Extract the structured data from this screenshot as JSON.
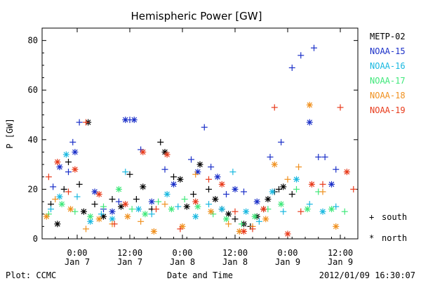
{
  "chart_data": {
    "type": "scatter",
    "title": "Hemispheric Power [GW]",
    "xlabel": "Date and Time",
    "ylabel": "P [GW]",
    "ylim": [
      0,
      85
    ],
    "xlim": [
      "2012-01-06T16:00",
      "2012-01-09T16:00"
    ],
    "yticks": [
      0,
      20,
      40,
      60,
      80
    ],
    "xticks": [
      {
        "time": "2012-01-07T00:00",
        "line1": "0:00",
        "line2": "Jan 7"
      },
      {
        "time": "2012-01-07T12:00",
        "line1": "12:00",
        "line2": "Jan 7"
      },
      {
        "time": "2012-01-08T00:00",
        "line1": "0:00",
        "line2": "Jan 8"
      },
      {
        "time": "2012-01-08T12:00",
        "line1": "12:00",
        "line2": "Jan 8"
      },
      {
        "time": "2012-01-09T00:00",
        "line1": "0:00",
        "line2": "Jan 9"
      },
      {
        "time": "2012-01-09T12:00",
        "line1": "12:00",
        "line2": "Jan 9"
      }
    ],
    "grid": false,
    "legend_position": "right",
    "marker_legend": {
      "south_symbol": "+",
      "south_label": "south",
      "north_symbol": "*",
      "north_label": "north"
    },
    "series": [
      {
        "name": "METP-02",
        "color": "#000000",
        "points": [
          [
            "2012-01-06T18:00",
            14,
            "S"
          ],
          [
            "2012-01-06T19:30",
            6,
            "N"
          ],
          [
            "2012-01-06T21:00",
            20,
            "S"
          ],
          [
            "2012-01-06T22:00",
            31,
            "S"
          ],
          [
            "2012-01-07T00:30",
            22,
            "S"
          ],
          [
            "2012-01-07T01:30",
            11,
            "N"
          ],
          [
            "2012-01-07T02:30",
            47,
            "N"
          ],
          [
            "2012-01-07T04:00",
            14,
            "S"
          ],
          [
            "2012-01-07T06:00",
            9,
            "N"
          ],
          [
            "2012-01-07T08:00",
            16,
            "S"
          ],
          [
            "2012-01-07T10:00",
            13,
            "N"
          ],
          [
            "2012-01-07T12:00",
            26,
            "S"
          ],
          [
            "2012-01-07T13:30",
            16,
            "S"
          ],
          [
            "2012-01-07T15:00",
            21,
            "N"
          ],
          [
            "2012-01-07T17:00",
            12,
            "S"
          ],
          [
            "2012-01-07T19:00",
            39,
            "S"
          ],
          [
            "2012-01-07T20:00",
            35,
            "N"
          ],
          [
            "2012-01-07T22:00",
            25,
            "S"
          ],
          [
            "2012-01-07T23:30",
            24,
            "N"
          ],
          [
            "2012-01-08T01:00",
            13,
            "N"
          ],
          [
            "2012-01-08T02:30",
            18,
            "S"
          ],
          [
            "2012-01-08T04:00",
            30,
            "N"
          ],
          [
            "2012-01-08T06:00",
            20,
            "S"
          ],
          [
            "2012-01-08T07:30",
            16,
            "N"
          ],
          [
            "2012-01-08T09:00",
            12,
            "S"
          ],
          [
            "2012-01-08T10:30",
            10,
            "N"
          ],
          [
            "2012-01-08T12:00",
            8,
            "S"
          ],
          [
            "2012-01-08T14:00",
            6,
            "N"
          ],
          [
            "2012-01-08T15:30",
            5,
            "S"
          ],
          [
            "2012-01-08T17:00",
            9,
            "N"
          ],
          [
            "2012-01-08T18:30",
            12,
            "S"
          ],
          [
            "2012-01-08T19:30",
            16,
            "N"
          ],
          [
            "2012-01-08T21:00",
            19,
            "S"
          ],
          [
            "2012-01-08T22:00",
            20,
            "S"
          ],
          [
            "2012-01-08T23:00",
            21,
            "N"
          ],
          [
            "2012-01-09T01:00",
            18,
            "S"
          ]
        ]
      },
      {
        "name": "NOAA-15",
        "color": "#1a2fc8",
        "points": [
          [
            "2012-01-06T18:30",
            21,
            "S"
          ],
          [
            "2012-01-06T20:00",
            29,
            "N"
          ],
          [
            "2012-01-06T22:00",
            27,
            "S"
          ],
          [
            "2012-01-06T23:00",
            39,
            "S"
          ],
          [
            "2012-01-06T23:30",
            35,
            "N"
          ],
          [
            "2012-01-07T00:30",
            47,
            "S"
          ],
          [
            "2012-01-07T04:00",
            19,
            "N"
          ],
          [
            "2012-01-07T06:00",
            12,
            "S"
          ],
          [
            "2012-01-07T08:00",
            11,
            "N"
          ],
          [
            "2012-01-07T09:30",
            15,
            "S"
          ],
          [
            "2012-01-07T11:00",
            48,
            "N"
          ],
          [
            "2012-01-07T12:00",
            48,
            "S"
          ],
          [
            "2012-01-07T13:00",
            48,
            "N"
          ],
          [
            "2012-01-07T14:30",
            36,
            "S"
          ],
          [
            "2012-01-07T17:00",
            15,
            "N"
          ],
          [
            "2012-01-07T20:00",
            28,
            "S"
          ],
          [
            "2012-01-07T22:00",
            22,
            "N"
          ],
          [
            "2012-01-08T02:00",
            32,
            "S"
          ],
          [
            "2012-01-08T03:30",
            27,
            "N"
          ],
          [
            "2012-01-08T05:00",
            45,
            "S"
          ],
          [
            "2012-01-08T06:30",
            29,
            "S"
          ],
          [
            "2012-01-08T08:00",
            25,
            "N"
          ],
          [
            "2012-01-08T10:00",
            18,
            "S"
          ],
          [
            "2012-01-08T12:00",
            20,
            "N"
          ],
          [
            "2012-01-08T14:00",
            19,
            "S"
          ],
          [
            "2012-01-08T17:00",
            15,
            "N"
          ],
          [
            "2012-01-08T20:00",
            33,
            "S"
          ],
          [
            "2012-01-08T22:30",
            39,
            "S"
          ],
          [
            "2012-01-09T01:00",
            69,
            "S"
          ],
          [
            "2012-01-09T03:00",
            74,
            "S"
          ],
          [
            "2012-01-09T05:00",
            47,
            "N"
          ],
          [
            "2012-01-09T06:00",
            77,
            "S"
          ],
          [
            "2012-01-09T07:00",
            33,
            "S"
          ],
          [
            "2012-01-09T08:30",
            33,
            "S"
          ],
          [
            "2012-01-09T10:00",
            22,
            "N"
          ],
          [
            "2012-01-09T11:00",
            28,
            "S"
          ]
        ]
      },
      {
        "name": "NOAA-16",
        "color": "#18b8e0",
        "points": [
          [
            "2012-01-06T18:00",
            12,
            "S"
          ],
          [
            "2012-01-06T20:00",
            17,
            "N"
          ],
          [
            "2012-01-06T21:30",
            34,
            "N"
          ],
          [
            "2012-01-07T00:00",
            17,
            "S"
          ],
          [
            "2012-01-07T03:00",
            7,
            "N"
          ],
          [
            "2012-01-07T05:30",
            10,
            "S"
          ],
          [
            "2012-01-07T08:00",
            8,
            "N"
          ],
          [
            "2012-01-07T11:00",
            27,
            "S"
          ],
          [
            "2012-01-07T14:00",
            12,
            "N"
          ],
          [
            "2012-01-07T17:00",
            10,
            "S"
          ],
          [
            "2012-01-07T20:30",
            18,
            "N"
          ],
          [
            "2012-01-07T23:00",
            13,
            "S"
          ],
          [
            "2012-01-08T03:00",
            9,
            "N"
          ],
          [
            "2012-01-08T06:00",
            14,
            "S"
          ],
          [
            "2012-01-08T09:00",
            12,
            "N"
          ],
          [
            "2012-01-08T11:30",
            27,
            "S"
          ],
          [
            "2012-01-08T14:30",
            11,
            "N"
          ],
          [
            "2012-01-08T17:30",
            7,
            "S"
          ],
          [
            "2012-01-08T20:30",
            19,
            "N"
          ],
          [
            "2012-01-08T23:00",
            11,
            "S"
          ],
          [
            "2012-01-09T02:00",
            24,
            "N"
          ],
          [
            "2012-01-09T05:00",
            14,
            "S"
          ],
          [
            "2012-01-09T08:00",
            11,
            "N"
          ],
          [
            "2012-01-09T11:00",
            13,
            "S"
          ]
        ]
      },
      {
        "name": "NOAA-17",
        "color": "#3fe87a",
        "points": [
          [
            "2012-01-06T17:30",
            10,
            "S"
          ],
          [
            "2012-01-06T20:30",
            14,
            "N"
          ],
          [
            "2012-01-06T23:30",
            11,
            "S"
          ],
          [
            "2012-01-07T03:00",
            9,
            "N"
          ],
          [
            "2012-01-07T06:00",
            13,
            "S"
          ],
          [
            "2012-01-07T09:30",
            20,
            "N"
          ],
          [
            "2012-01-07T12:30",
            12,
            "S"
          ],
          [
            "2012-01-07T15:30",
            10,
            "N"
          ],
          [
            "2012-01-07T18:30",
            15,
            "S"
          ],
          [
            "2012-01-07T21:30",
            12,
            "N"
          ],
          [
            "2012-01-08T00:30",
            16,
            "S"
          ],
          [
            "2012-01-08T03:30",
            13,
            "N"
          ],
          [
            "2012-01-08T07:00",
            10,
            "S"
          ],
          [
            "2012-01-08T10:00",
            8,
            "N"
          ],
          [
            "2012-01-08T13:30",
            6,
            "S"
          ],
          [
            "2012-01-08T16:30",
            9,
            "N"
          ],
          [
            "2012-01-08T19:30",
            12,
            "S"
          ],
          [
            "2012-01-08T22:30",
            14,
            "N"
          ],
          [
            "2012-01-09T02:00",
            20,
            "S"
          ],
          [
            "2012-01-09T04:30",
            12,
            "N"
          ],
          [
            "2012-01-09T07:00",
            19,
            "S"
          ],
          [
            "2012-01-09T10:00",
            12,
            "N"
          ],
          [
            "2012-01-09T13:00",
            11,
            "S"
          ]
        ]
      },
      {
        "name": "NOAA-18",
        "color": "#f0901e",
        "points": [
          [
            "2012-01-06T17:00",
            9,
            "N"
          ],
          [
            "2012-01-06T19:00",
            16,
            "S"
          ],
          [
            "2012-01-06T22:30",
            12,
            "N"
          ],
          [
            "2012-01-07T02:00",
            4,
            "S"
          ],
          [
            "2012-01-07T05:00",
            8,
            "N"
          ],
          [
            "2012-01-07T08:00",
            6,
            "S"
          ],
          [
            "2012-01-07T11:30",
            9,
            "N"
          ],
          [
            "2012-01-07T14:30",
            7,
            "S"
          ],
          [
            "2012-01-07T17:30",
            3,
            "N"
          ],
          [
            "2012-01-07T20:00",
            14,
            "S"
          ],
          [
            "2012-01-08T00:00",
            5,
            "N"
          ],
          [
            "2012-01-08T03:00",
            26,
            "S"
          ],
          [
            "2012-01-08T06:30",
            11,
            "N"
          ],
          [
            "2012-01-08T10:30",
            6,
            "S"
          ],
          [
            "2012-01-08T13:00",
            3,
            "N"
          ],
          [
            "2012-01-08T16:00",
            5,
            "S"
          ],
          [
            "2012-01-08T19:00",
            8,
            "N"
          ],
          [
            "2012-01-08T21:00",
            30,
            "N"
          ],
          [
            "2012-01-09T00:00",
            24,
            "S"
          ],
          [
            "2012-01-09T02:30",
            29,
            "S"
          ],
          [
            "2012-01-09T05:00",
            54,
            "N"
          ],
          [
            "2012-01-09T08:00",
            19,
            "S"
          ],
          [
            "2012-01-09T11:00",
            5,
            "N"
          ]
        ]
      },
      {
        "name": "NOAA-19",
        "color": "#e83a1a",
        "points": [
          [
            "2012-01-06T17:30",
            25,
            "S"
          ],
          [
            "2012-01-06T19:30",
            31,
            "N"
          ],
          [
            "2012-01-06T22:00",
            19,
            "S"
          ],
          [
            "2012-01-06T23:30",
            28,
            "N"
          ],
          [
            "2012-01-07T02:00",
            47,
            "S"
          ],
          [
            "2012-01-07T05:00",
            18,
            "N"
          ],
          [
            "2012-01-07T08:30",
            6,
            "S"
          ],
          [
            "2012-01-07T11:00",
            14,
            "N"
          ],
          [
            "2012-01-07T15:00",
            35,
            "N"
          ],
          [
            "2012-01-07T18:00",
            12,
            "S"
          ],
          [
            "2012-01-07T20:30",
            34,
            "N"
          ],
          [
            "2012-01-07T23:30",
            4,
            "S"
          ],
          [
            "2012-01-08T03:00",
            15,
            "N"
          ],
          [
            "2012-01-08T06:00",
            24,
            "S"
          ],
          [
            "2012-01-08T09:00",
            22,
            "N"
          ],
          [
            "2012-01-08T12:00",
            11,
            "S"
          ],
          [
            "2012-01-08T14:00",
            3,
            "N"
          ],
          [
            "2012-01-08T16:00",
            4,
            "S"
          ],
          [
            "2012-01-08T18:30",
            12,
            "N"
          ],
          [
            "2012-01-08T21:00",
            53,
            "S"
          ],
          [
            "2012-01-09T00:00",
            2,
            "N"
          ],
          [
            "2012-01-09T03:00",
            11,
            "S"
          ],
          [
            "2012-01-09T05:30",
            22,
            "N"
          ],
          [
            "2012-01-09T08:00",
            22,
            "S"
          ],
          [
            "2012-01-09T12:00",
            53,
            "S"
          ],
          [
            "2012-01-09T13:30",
            27,
            "N"
          ],
          [
            "2012-01-09T15:00",
            20,
            "S"
          ]
        ]
      }
    ]
  },
  "footer": {
    "left": "Plot: CCMC",
    "right": "2012/01/09 16:30:07"
  }
}
